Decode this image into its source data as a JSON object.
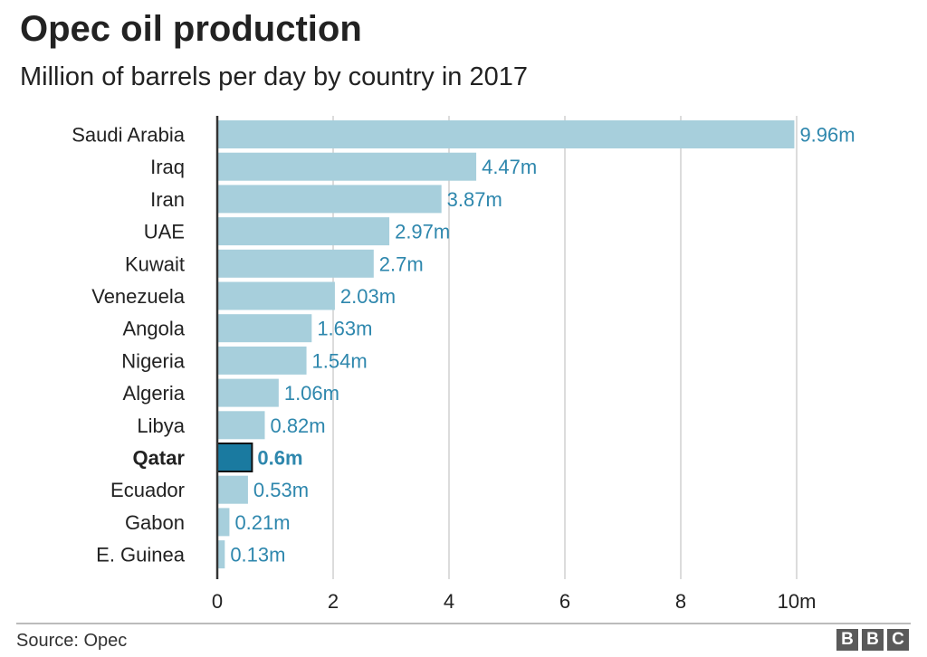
{
  "chart_data": {
    "type": "bar",
    "orientation": "horizontal",
    "title": "Opec oil production",
    "subtitle": "Million of barrels per day by country in 2017",
    "categories": [
      "Saudi Arabia",
      "Iraq",
      "Iran",
      "UAE",
      "Kuwait",
      "Venezuela",
      "Angola",
      "Nigeria",
      "Algeria",
      "Libya",
      "Qatar",
      "Ecuador",
      "Gabon",
      "E. Guinea"
    ],
    "values": [
      9.96,
      4.47,
      3.87,
      2.97,
      2.7,
      2.03,
      1.63,
      1.54,
      1.06,
      0.82,
      0.6,
      0.53,
      0.21,
      0.13
    ],
    "value_labels": [
      "9.96m",
      "4.47m",
      "3.87m",
      "2.97m",
      "2.7m",
      "2.03m",
      "1.63m",
      "1.54m",
      "1.06m",
      "0.82m",
      "0.6m",
      "0.53m",
      "0.21m",
      "0.13m"
    ],
    "highlight": "Qatar",
    "xlim": [
      0,
      10
    ],
    "xticks": [
      0,
      2,
      4,
      6,
      8,
      10
    ],
    "xtick_labels": [
      "0",
      "2",
      "4",
      "6",
      "8",
      "10m"
    ],
    "grid": true,
    "colors": {
      "bar": "#a7cfdc",
      "highlight_bar": "#1a7aa0",
      "highlight_border": "#111111",
      "value_label": "#2e87ad",
      "grid": "#d0d0d0",
      "axis": "#333333"
    }
  },
  "footer": {
    "source": "Source: Opec",
    "logo_letters": [
      "B",
      "B",
      "C"
    ]
  }
}
